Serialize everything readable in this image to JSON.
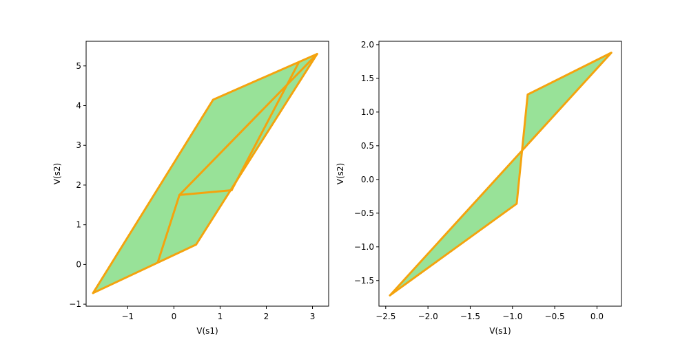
{
  "colors": {
    "fill": "#98e298",
    "edge": "#f4a30e",
    "axis": "#000000",
    "background": "#ffffff"
  },
  "chart_data": [
    {
      "type": "area",
      "title": "",
      "xlabel": "V(s1)",
      "ylabel": "V(s2)",
      "xlim": [
        -1.9,
        3.35
      ],
      "ylim": [
        -1.05,
        5.62
      ],
      "xticks": [
        -1,
        0,
        1,
        2,
        3
      ],
      "yticks": [
        -1,
        0,
        1,
        2,
        3,
        4,
        5
      ],
      "xtick_labels": [
        "−1",
        "0",
        "1",
        "2",
        "3"
      ],
      "ytick_labels": [
        "−1",
        "0",
        "1",
        "2",
        "3",
        "4",
        "5"
      ],
      "grid": false,
      "legend": "none",
      "filled_region": [
        [
          -1.75,
          -0.72
        ],
        [
          0.48,
          0.5
        ],
        [
          3.1,
          5.3
        ],
        [
          0.85,
          4.15
        ]
      ],
      "outline": [
        [
          -1.75,
          -0.72
        ],
        [
          0.48,
          0.5
        ],
        [
          3.1,
          5.3
        ],
        [
          0.85,
          4.15
        ],
        [
          -1.75,
          -0.72
        ]
      ],
      "internal_edges": [
        [
          [
            0.12,
            1.75
          ],
          [
            3.1,
            5.3
          ]
        ],
        [
          [
            0.12,
            1.75
          ],
          [
            1.25,
            1.87
          ]
        ],
        [
          [
            0.12,
            1.75
          ],
          [
            -0.35,
            0.05
          ]
        ],
        [
          [
            2.7,
            5.08
          ],
          [
            1.25,
            1.87
          ]
        ]
      ]
    },
    {
      "type": "area",
      "title": "",
      "xlabel": "V(s1)",
      "ylabel": "V(s2)",
      "xlim": [
        -2.58,
        0.29
      ],
      "ylim": [
        -1.88,
        2.05
      ],
      "xticks": [
        -2.5,
        -2.0,
        -1.5,
        -1.0,
        -0.5,
        0.0
      ],
      "yticks": [
        -1.5,
        -1.0,
        -0.5,
        0.0,
        0.5,
        1.0,
        1.5,
        2.0
      ],
      "xtick_labels": [
        "−2.5",
        "−2.0",
        "−1.5",
        "−1.0",
        "−0.5",
        "0.0"
      ],
      "ytick_labels": [
        "−1.5",
        "−1.0",
        "−0.5",
        "0.0",
        "0.5",
        "1.0",
        "1.5",
        "2.0"
      ],
      "grid": false,
      "legend": "none",
      "filled_region": [
        [
          -2.45,
          -1.72
        ],
        [
          -0.95,
          -0.36
        ],
        [
          -0.82,
          1.26
        ],
        [
          0.17,
          1.88
        ]
      ],
      "outline": [
        [
          -2.45,
          -1.72
        ],
        [
          -0.95,
          -0.36
        ],
        [
          -0.82,
          1.26
        ],
        [
          0.17,
          1.88
        ],
        [
          -2.45,
          -1.72
        ]
      ],
      "internal_edges": []
    }
  ]
}
